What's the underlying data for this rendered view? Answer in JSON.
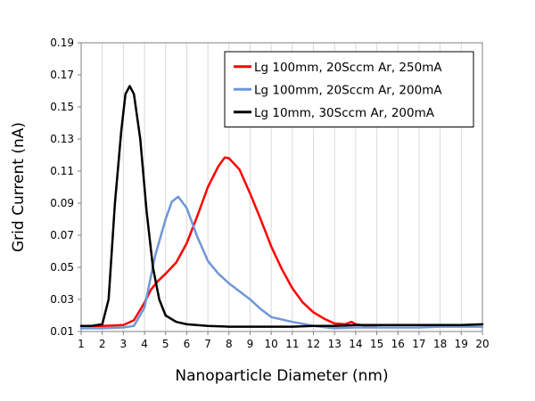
{
  "chart_data": {
    "type": "line",
    "xlabel": "Nanoparticle Diameter (nm)",
    "ylabel": "Grid Current (nA)",
    "xlim": [
      1,
      20
    ],
    "ylim": [
      0.01,
      0.19
    ],
    "x_ticks": [
      1,
      2,
      3,
      4,
      5,
      6,
      7,
      8,
      9,
      10,
      11,
      12,
      13,
      14,
      15,
      16,
      17,
      18,
      19,
      20
    ],
    "x_tick_labels": [
      "1",
      "2",
      "3",
      "4",
      "5",
      "6",
      "7",
      "8",
      "9",
      "10",
      "11",
      "12",
      "13",
      "14",
      "15",
      "16",
      "17",
      "18",
      "19",
      "20"
    ],
    "y_ticks": [
      0.01,
      0.03,
      0.05,
      0.07,
      0.09,
      0.11,
      0.13,
      0.15,
      0.17,
      0.19
    ],
    "y_tick_labels": [
      "0.01",
      "0.03",
      "0.05",
      "0.07",
      "0.09",
      "0.11",
      "0.13",
      "0.15",
      "0.17",
      "0.19"
    ],
    "vertical_grid": true,
    "horizontal_grid": false,
    "legend_position": "top-right",
    "series": [
      {
        "name": "Lg 100mm, 20Sccm Ar, 250mA",
        "color": "#ff0000",
        "x": [
          1,
          2,
          3,
          3.5,
          4,
          4.3,
          4.6,
          5,
          5.5,
          6,
          6.5,
          7,
          7.5,
          7.8,
          8,
          8.5,
          9,
          9.5,
          10,
          10.5,
          11,
          11.5,
          12,
          12.5,
          13,
          13.5,
          13.8,
          14,
          14.5,
          15
        ],
        "y": [
          0.0135,
          0.0135,
          0.014,
          0.017,
          0.028,
          0.036,
          0.041,
          0.046,
          0.053,
          0.065,
          0.082,
          0.1,
          0.113,
          0.1185,
          0.118,
          0.111,
          0.096,
          0.08,
          0.063,
          0.049,
          0.037,
          0.028,
          0.022,
          0.018,
          0.015,
          0.0145,
          0.016,
          0.0145,
          0.0135,
          0.013
        ]
      },
      {
        "name": "Lg 100mm, 20Sccm Ar, 200mA",
        "color": "#6e97d6",
        "x": [
          1,
          2,
          3,
          3.5,
          4,
          4.5,
          5,
          5.3,
          5.6,
          6,
          6.5,
          7,
          7.5,
          8,
          9,
          9.5,
          10,
          11,
          12,
          13,
          14,
          15,
          16,
          17,
          18,
          19,
          20
        ],
        "y": [
          0.012,
          0.012,
          0.0125,
          0.0135,
          0.025,
          0.057,
          0.08,
          0.091,
          0.094,
          0.087,
          0.069,
          0.054,
          0.046,
          0.04,
          0.03,
          0.024,
          0.019,
          0.016,
          0.0135,
          0.012,
          0.0125,
          0.0125,
          0.0125,
          0.0125,
          0.013,
          0.013,
          0.013
        ]
      },
      {
        "name": "Lg 10mm, 30Sccm Ar, 200mA",
        "color": "#000000",
        "x": [
          1,
          1.5,
          2,
          2.3,
          2.6,
          2.9,
          3.1,
          3.3,
          3.5,
          3.8,
          4.1,
          4.4,
          4.7,
          5,
          5.5,
          6,
          7,
          8,
          9,
          10,
          11,
          12,
          13,
          14,
          15,
          16,
          17,
          18,
          19,
          20
        ],
        "y": [
          0.0135,
          0.0135,
          0.0145,
          0.03,
          0.09,
          0.135,
          0.158,
          0.163,
          0.158,
          0.13,
          0.085,
          0.05,
          0.03,
          0.02,
          0.016,
          0.0145,
          0.0135,
          0.013,
          0.013,
          0.013,
          0.013,
          0.0135,
          0.0135,
          0.014,
          0.014,
          0.014,
          0.014,
          0.014,
          0.014,
          0.0145
        ]
      }
    ]
  }
}
